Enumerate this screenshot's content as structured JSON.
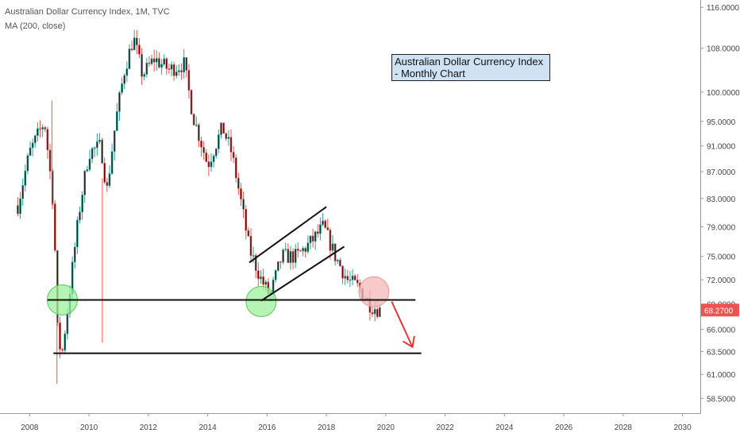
{
  "header": {
    "title": "Australian Dollar Currency Index, 1M, TVC",
    "indicator": "MA (200, close)"
  },
  "annotation": {
    "text": "Australian Dollar Currency Index\n- Monthly Chart"
  },
  "colors": {
    "up": "#26a69a",
    "down": "#ef5350",
    "body": "#222222",
    "price_badge": "#ef5350",
    "note_bg": "#cfe2f3",
    "circle_green": "#9ef09e",
    "circle_red": "#f4b7b7",
    "arrow": "#e53935"
  },
  "chart_data": {
    "type": "candlestick",
    "title": "",
    "xlabel": "",
    "ylabel": "",
    "last_price": "68.2700",
    "x_range": [
      2007.0,
      2030.6
    ],
    "y_range": [
      57.0,
      117.5
    ],
    "y_scale": "log",
    "grid": false,
    "y_ticks": [
      "116.0000",
      "108.0000",
      "100.0000",
      "95.0000",
      "91.0000",
      "87.0000",
      "83.0000",
      "79.0000",
      "75.0000",
      "72.0000",
      "69.0000",
      "66.0000",
      "63.5000",
      "61.0000",
      "58.5000"
    ],
    "x_ticks": [
      "2008",
      "2010",
      "2012",
      "2014",
      "2016",
      "2018",
      "2020",
      "2022",
      "2024",
      "2026",
      "2028",
      "2030"
    ],
    "keypoints": [
      {
        "t": 2007.6,
        "p": 82
      },
      {
        "t": 2008.0,
        "p": 90
      },
      {
        "t": 2008.5,
        "p": 95
      },
      {
        "t": 2008.8,
        "p": 82
      },
      {
        "t": 2008.95,
        "p": 64.5
      },
      {
        "t": 2009.1,
        "p": 63.5
      },
      {
        "t": 2009.3,
        "p": 69
      },
      {
        "t": 2009.7,
        "p": 82
      },
      {
        "t": 2010.0,
        "p": 90
      },
      {
        "t": 2010.4,
        "p": 91
      },
      {
        "t": 2010.6,
        "p": 84
      },
      {
        "t": 2010.9,
        "p": 95
      },
      {
        "t": 2011.2,
        "p": 104
      },
      {
        "t": 2011.5,
        "p": 110
      },
      {
        "t": 2011.8,
        "p": 103
      },
      {
        "t": 2012.2,
        "p": 106
      },
      {
        "t": 2012.7,
        "p": 104
      },
      {
        "t": 2013.2,
        "p": 105
      },
      {
        "t": 2013.5,
        "p": 96
      },
      {
        "t": 2014.0,
        "p": 88
      },
      {
        "t": 2014.5,
        "p": 94
      },
      {
        "t": 2014.8,
        "p": 90
      },
      {
        "t": 2015.1,
        "p": 83
      },
      {
        "t": 2015.4,
        "p": 76
      },
      {
        "t": 2015.8,
        "p": 72
      },
      {
        "t": 2016.1,
        "p": 70
      },
      {
        "t": 2016.5,
        "p": 75
      },
      {
        "t": 2017.0,
        "p": 75
      },
      {
        "t": 2017.5,
        "p": 77
      },
      {
        "t": 2017.9,
        "p": 79
      },
      {
        "t": 2018.3,
        "p": 75
      },
      {
        "t": 2018.7,
        "p": 72
      },
      {
        "t": 2019.1,
        "p": 71
      },
      {
        "t": 2019.5,
        "p": 68.8
      },
      {
        "t": 2019.8,
        "p": 68.3
      }
    ],
    "lines": [
      {
        "name": "support-line",
        "from": [
          2008.6,
          69.5
        ],
        "to": [
          2021.0,
          69.5
        ]
      },
      {
        "name": "low-line",
        "from": [
          2008.8,
          63.3
        ],
        "to": [
          2021.2,
          63.3
        ]
      },
      {
        "name": "channel-upper",
        "from": [
          2015.4,
          74.2
        ],
        "to": [
          2018.0,
          81.8
        ]
      },
      {
        "name": "channel-lower",
        "from": [
          2015.8,
          69.4
        ],
        "to": [
          2018.6,
          76.3
        ]
      }
    ],
    "circles": [
      {
        "name": "green-circle-2009",
        "t": 2009.1,
        "p": 69.5,
        "color": "green"
      },
      {
        "name": "green-circle-2016",
        "t": 2015.8,
        "p": 69.3,
        "color": "green"
      },
      {
        "name": "red-circle-2019",
        "t": 2019.6,
        "p": 70.5,
        "color": "red"
      }
    ],
    "arrow": {
      "from": [
        2020.2,
        69.3
      ],
      "to": [
        2020.9,
        64.0
      ]
    }
  }
}
